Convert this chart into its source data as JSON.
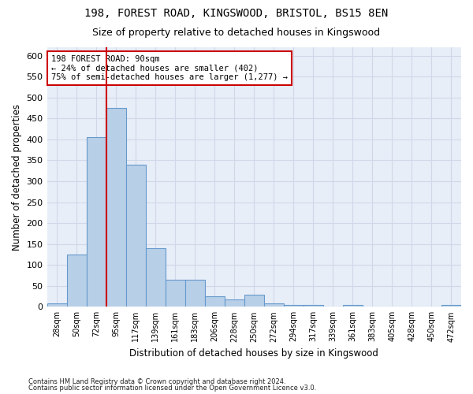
{
  "title1": "198, FOREST ROAD, KINGSWOOD, BRISTOL, BS15 8EN",
  "title2": "Size of property relative to detached houses in Kingswood",
  "xlabel": "Distribution of detached houses by size in Kingswood",
  "ylabel": "Number of detached properties",
  "footnote1": "Contains HM Land Registry data © Crown copyright and database right 2024.",
  "footnote2": "Contains public sector information licensed under the Open Government Licence v3.0.",
  "bar_color": "#b8cfe8",
  "bar_edge_color": "#6699cc",
  "background_color": "#e8eef8",
  "grid_color": "#d0d8e8",
  "red_line_color": "#cc0000",
  "annotation_box_color": "#cc0000",
  "bin_labels": [
    "28sqm",
    "50sqm",
    "72sqm",
    "95sqm",
    "117sqm",
    "139sqm",
    "161sqm",
    "183sqm",
    "206sqm",
    "228sqm",
    "250sqm",
    "272sqm",
    "294sqm",
    "317sqm",
    "339sqm",
    "361sqm",
    "383sqm",
    "405sqm",
    "428sqm",
    "450sqm",
    "472sqm"
  ],
  "bar_values": [
    8,
    125,
    405,
    475,
    340,
    140,
    65,
    65,
    25,
    18,
    28,
    8,
    5,
    5,
    0,
    5,
    0,
    0,
    0,
    0,
    4
  ],
  "red_line_x": 2.5,
  "ylim": [
    0,
    620
  ],
  "yticks": [
    0,
    50,
    100,
    150,
    200,
    250,
    300,
    350,
    400,
    450,
    500,
    550,
    600
  ],
  "annotation_text": "198 FOREST ROAD: 90sqm\n← 24% of detached houses are smaller (402)\n75% of semi-detached houses are larger (1,277) →",
  "fig_width": 6.0,
  "fig_height": 5.0,
  "dpi": 100
}
